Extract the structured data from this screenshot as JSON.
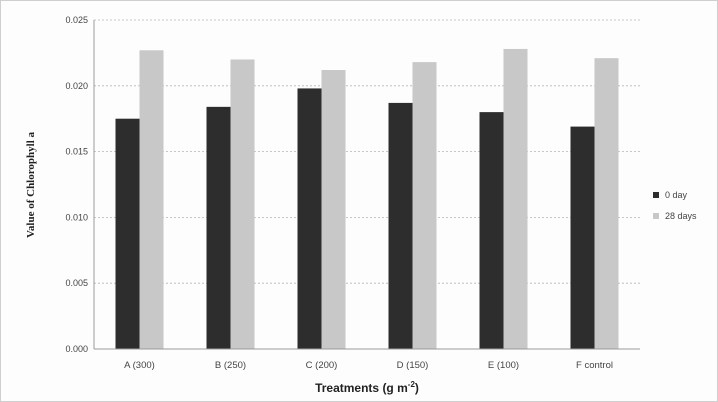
{
  "chart_data": {
    "type": "bar",
    "categories": [
      "A (300)",
      "B (250)",
      "C (200)",
      "D (150)",
      "E (100)",
      "F control"
    ],
    "series": [
      {
        "name": "0 day",
        "values": [
          0.0175,
          0.0184,
          0.0198,
          0.0187,
          0.018,
          0.0169
        ],
        "color": "#2d2d2d"
      },
      {
        "name": "28 days",
        "values": [
          0.0227,
          0.022,
          0.0212,
          0.0218,
          0.0228,
          0.0221
        ],
        "color": "#c8c8c8"
      }
    ],
    "title": "",
    "xlabel": "Treatments (g m",
    "xlabel_superscript": "-2",
    "xlabel_suffix": ")",
    "ylabel": "Value of Chlorophyll a",
    "ylim": [
      0,
      0.025
    ],
    "yticks": [
      "0.000",
      "0.005",
      "0.010",
      "0.015",
      "0.020",
      "0.025"
    ],
    "grid": true,
    "legend_position": "right"
  }
}
